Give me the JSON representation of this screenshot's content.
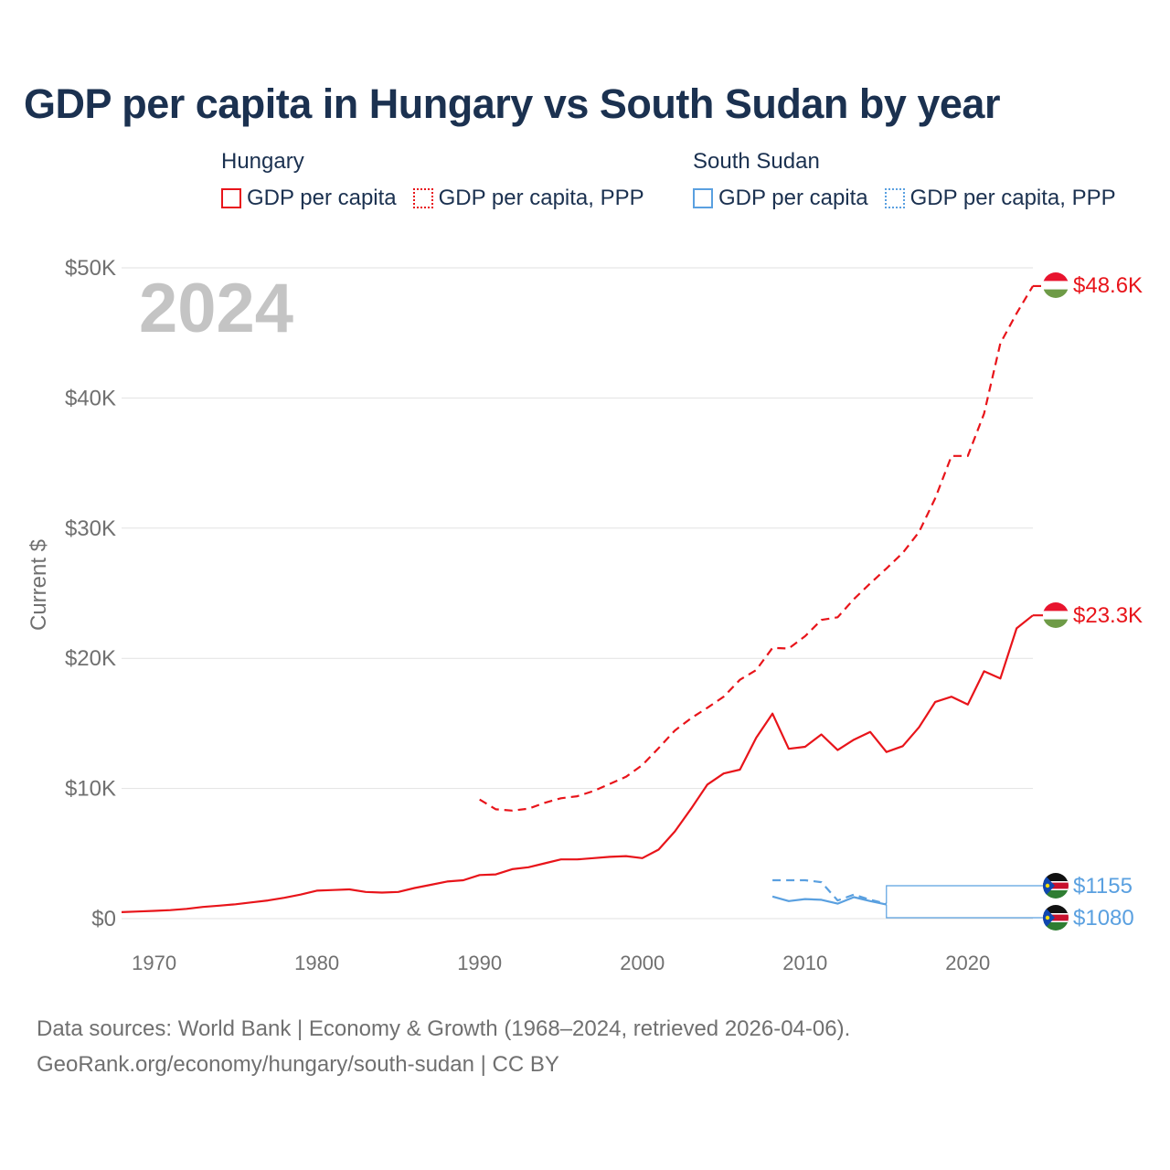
{
  "title": "GDP per capita in Hungary vs South Sudan by year",
  "legend": {
    "groups": [
      {
        "country": "Hungary",
        "color": "#e8141a",
        "items": [
          "GDP per capita",
          "GDP per capita, PPP"
        ]
      },
      {
        "country": "South Sudan",
        "color": "#5aa0e0",
        "items": [
          "GDP per capita",
          "GDP per capita, PPP"
        ]
      }
    ]
  },
  "year_label": "2024",
  "source": {
    "line1": "Data sources: World Bank | Economy & Growth (1968–2024, retrieved 2026-04-06).",
    "line2": "GeoRank.org/economy/hungary/south-sudan | CC BY"
  },
  "chart_data": {
    "type": "line",
    "title": "GDP per capita in Hungary vs South Sudan by year",
    "xlabel": "",
    "ylabel": "Current $",
    "xlim": [
      1968,
      2024
    ],
    "ylim": [
      0,
      50000
    ],
    "x_ticks": [
      1970,
      1980,
      1990,
      2000,
      2010,
      2020
    ],
    "x_tick_labels": [
      "1970",
      "1980",
      "1990",
      "2000",
      "2010",
      "2020"
    ],
    "y_ticks": [
      0,
      10000,
      20000,
      30000,
      40000,
      50000
    ],
    "y_tick_labels": [
      "$0",
      "$10K",
      "$20K",
      "$30K",
      "$40K",
      "$50K"
    ],
    "grid": true,
    "series": [
      {
        "name": "Hungary GDP per capita",
        "color": "#e8141a",
        "dash": "solid",
        "end_label": "$23.3K",
        "points": [
          [
            1968,
            500
          ],
          [
            1969,
            550
          ],
          [
            1970,
            600
          ],
          [
            1971,
            650
          ],
          [
            1972,
            750
          ],
          [
            1973,
            900
          ],
          [
            1974,
            1000
          ],
          [
            1975,
            1100
          ],
          [
            1976,
            1250
          ],
          [
            1977,
            1400
          ],
          [
            1978,
            1600
          ],
          [
            1979,
            1850
          ],
          [
            1980,
            2150
          ],
          [
            1981,
            2200
          ],
          [
            1982,
            2250
          ],
          [
            1983,
            2050
          ],
          [
            1984,
            2000
          ],
          [
            1985,
            2050
          ],
          [
            1986,
            2350
          ],
          [
            1987,
            2600
          ],
          [
            1988,
            2850
          ],
          [
            1989,
            2950
          ],
          [
            1990,
            3350
          ],
          [
            1991,
            3400
          ],
          [
            1992,
            3800
          ],
          [
            1993,
            3950
          ],
          [
            1994,
            4250
          ],
          [
            1995,
            4550
          ],
          [
            1996,
            4550
          ],
          [
            1997,
            4650
          ],
          [
            1998,
            4750
          ],
          [
            1999,
            4800
          ],
          [
            2000,
            4650
          ],
          [
            2001,
            5300
          ],
          [
            2002,
            6700
          ],
          [
            2003,
            8450
          ],
          [
            2004,
            10300
          ],
          [
            2005,
            11150
          ],
          [
            2006,
            11450
          ],
          [
            2007,
            13900
          ],
          [
            2008,
            15750
          ],
          [
            2009,
            13050
          ],
          [
            2010,
            13200
          ],
          [
            2011,
            14150
          ],
          [
            2012,
            12950
          ],
          [
            2013,
            13750
          ],
          [
            2014,
            14350
          ],
          [
            2015,
            12800
          ],
          [
            2016,
            13250
          ],
          [
            2017,
            14700
          ],
          [
            2018,
            16650
          ],
          [
            2019,
            17050
          ],
          [
            2020,
            16450
          ],
          [
            2021,
            19000
          ],
          [
            2022,
            18450
          ],
          [
            2023,
            22300
          ],
          [
            2024,
            23300
          ]
        ]
      },
      {
        "name": "Hungary GDP per capita, PPP",
        "color": "#e8141a",
        "dash": "dashed",
        "end_label": "$48.6K",
        "points": [
          [
            1990,
            9150
          ],
          [
            1991,
            8400
          ],
          [
            1992,
            8300
          ],
          [
            1993,
            8450
          ],
          [
            1994,
            8900
          ],
          [
            1995,
            9250
          ],
          [
            1996,
            9400
          ],
          [
            1997,
            9800
          ],
          [
            1998,
            10350
          ],
          [
            1999,
            10900
          ],
          [
            2000,
            11800
          ],
          [
            2001,
            13100
          ],
          [
            2002,
            14450
          ],
          [
            2003,
            15400
          ],
          [
            2004,
            16200
          ],
          [
            2005,
            17050
          ],
          [
            2006,
            18350
          ],
          [
            2007,
            19100
          ],
          [
            2008,
            20800
          ],
          [
            2009,
            20750
          ],
          [
            2010,
            21700
          ],
          [
            2011,
            22950
          ],
          [
            2012,
            23150
          ],
          [
            2013,
            24550
          ],
          [
            2014,
            25750
          ],
          [
            2015,
            26900
          ],
          [
            2016,
            28100
          ],
          [
            2017,
            29700
          ],
          [
            2018,
            32300
          ],
          [
            2019,
            35550
          ],
          [
            2020,
            35550
          ],
          [
            2021,
            38800
          ],
          [
            2022,
            44200
          ],
          [
            2023,
            46500
          ],
          [
            2024,
            48600
          ]
        ]
      },
      {
        "name": "South Sudan GDP per capita",
        "color": "#5aa0e0",
        "dash": "solid",
        "end_label": "$1080",
        "points": [
          [
            2008,
            1700
          ],
          [
            2009,
            1350
          ],
          [
            2010,
            1500
          ],
          [
            2011,
            1450
          ],
          [
            2012,
            1150
          ],
          [
            2013,
            1650
          ],
          [
            2014,
            1350
          ],
          [
            2015,
            1080
          ]
        ]
      },
      {
        "name": "South Sudan GDP per capita, PPP",
        "color": "#5aa0e0",
        "dash": "dashed",
        "end_label": "$1155",
        "points": [
          [
            2008,
            2950
          ],
          [
            2009,
            2950
          ],
          [
            2010,
            2950
          ],
          [
            2011,
            2800
          ],
          [
            2012,
            1400
          ],
          [
            2013,
            1850
          ],
          [
            2014,
            1450
          ],
          [
            2015,
            1155
          ]
        ]
      }
    ]
  }
}
